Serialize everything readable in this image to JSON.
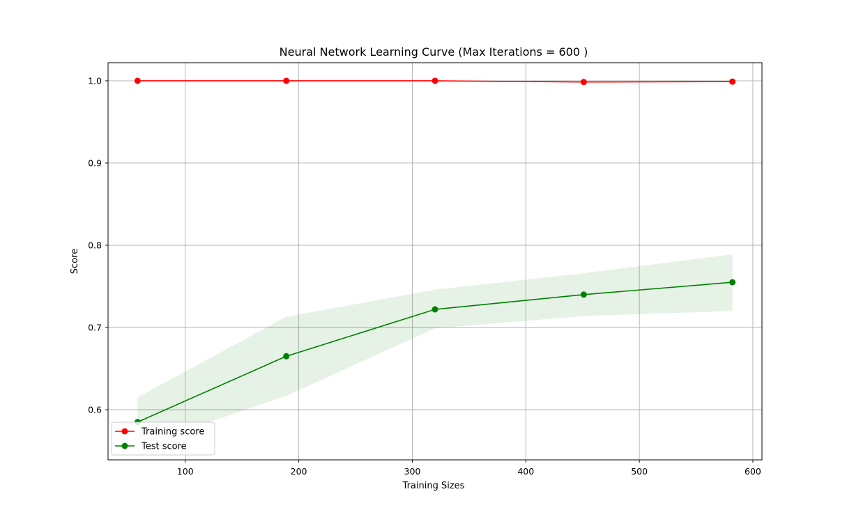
{
  "chart_data": {
    "type": "line",
    "title": "Neural Network Learning Curve (Max Iterations = 600 )",
    "xlabel": "Training Sizes",
    "ylabel": "Score",
    "xlim": [
      32,
      608
    ],
    "ylim": [
      0.539,
      1.022
    ],
    "xticks": [
      100,
      200,
      300,
      400,
      500,
      600
    ],
    "yticks": [
      0.6,
      0.7,
      0.8,
      0.9,
      1.0
    ],
    "xtick_labels": [
      "100",
      "200",
      "300",
      "400",
      "500",
      "600"
    ],
    "ytick_labels": [
      "0.6",
      "0.7",
      "0.8",
      "0.9",
      "1.0"
    ],
    "grid": true,
    "legend_position": "lower-left",
    "x": [
      58,
      189,
      320,
      451,
      582
    ],
    "series": [
      {
        "name": "Training score",
        "color": "#ff0000",
        "values": [
          1.0,
          1.0,
          1.0,
          0.9985,
          0.999
        ],
        "band_lower": [
          1.0,
          1.0,
          1.0,
          0.9985,
          0.999
        ],
        "band_upper": [
          1.0,
          1.0,
          1.0,
          0.9985,
          0.999
        ]
      },
      {
        "name": "Test score",
        "color": "#008000",
        "values": [
          0.585,
          0.665,
          0.722,
          0.74,
          0.755
        ],
        "band_lower": [
          0.555,
          0.617,
          0.699,
          0.714,
          0.72
        ],
        "band_upper": [
          0.615,
          0.713,
          0.746,
          0.766,
          0.789
        ]
      }
    ]
  }
}
